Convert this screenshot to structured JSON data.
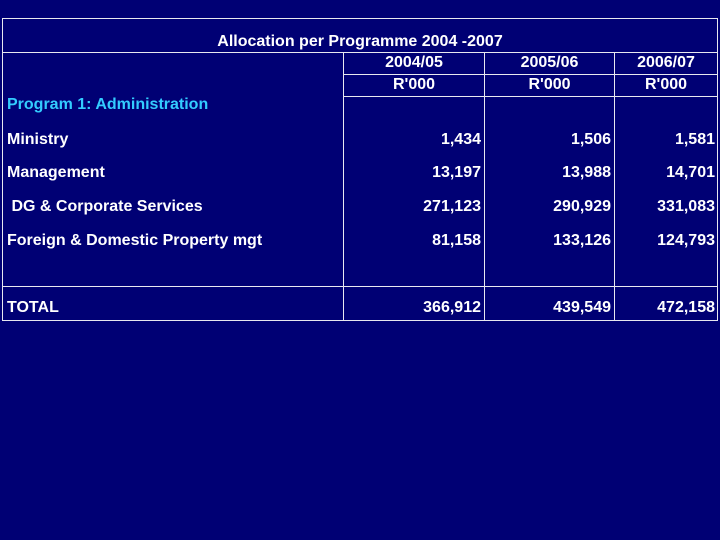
{
  "table": {
    "title": "Allocation per Programme 2004 -2007",
    "columns": [
      "2004/05",
      "2005/06",
      "2006/07"
    ],
    "units": [
      "R'000",
      "R'000",
      "R'000"
    ],
    "section": "Program 1: Administration",
    "rows": [
      [
        "Ministry",
        "1,434",
        "1,506",
        "1,581"
      ],
      [
        "Management",
        "13,197",
        "13,988",
        "14,701"
      ],
      [
        " DG & Corporate Services",
        "271,123",
        "290,929",
        "331,083"
      ],
      [
        "Foreign & Domestic Property mgt",
        "81,158",
        "133,126",
        "124,793"
      ]
    ],
    "total": [
      "TOTAL",
      "366,912",
      "439,549",
      "472,158"
    ]
  }
}
